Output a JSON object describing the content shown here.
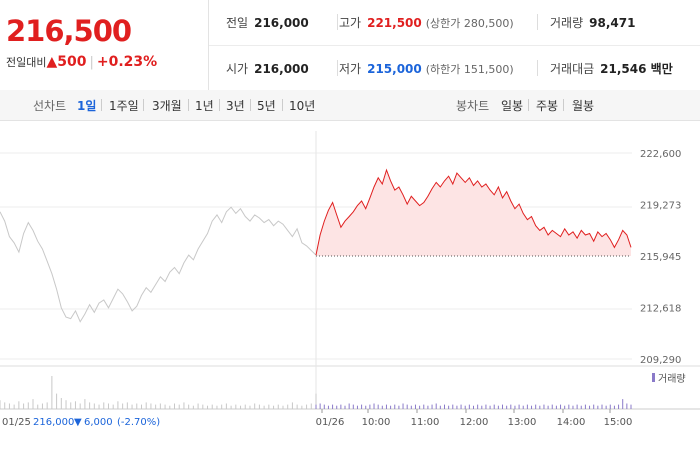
{
  "quote": {
    "price": "216,500",
    "change_label": "전일대비",
    "change_arrow": "▲",
    "change_value": "500",
    "change_pct": "+0.23%"
  },
  "info": {
    "prev_close_label": "전일",
    "prev_close": "216,000",
    "high_label": "고가",
    "high": "221,500",
    "upper_limit": "(상한가 280,500)",
    "volume_label": "거래량",
    "volume": "98,471",
    "open_label": "시가",
    "open": "216,000",
    "low_label": "저가",
    "low": "215,000",
    "lower_limit": "(하한가 151,500)",
    "amount_label": "거래대금",
    "amount": "21,546 백만"
  },
  "tabs": {
    "line_label": "선차트",
    "line_items": [
      "1일",
      "1주일",
      "3개월",
      "1년",
      "3년",
      "5년",
      "10년"
    ],
    "active": "1일",
    "candle_label": "봉차트",
    "candle_items": [
      "일봉",
      "주봉",
      "월봉"
    ]
  },
  "colors": {
    "up": "#e01f1f",
    "down": "#1b64da",
    "prev": "#c8c8c8",
    "fill": "#fde4e4"
  },
  "chart_data": {
    "type": "line",
    "title": "",
    "y_ticks": [
      "222,600",
      "219,273",
      "215,945",
      "212,618",
      "209,290"
    ],
    "y_tick_values": [
      222600,
      219273,
      215945,
      212618,
      209290
    ],
    "ylim": [
      209290,
      222600
    ],
    "x_tick_labels": [
      "01/26",
      "10:00",
      "11:00",
      "12:00",
      "13:00",
      "14:00",
      "15:00"
    ],
    "baseline": 215945,
    "volume_label": "거래량",
    "prev_day_caption": {
      "date": "01/25",
      "close": "216,000",
      "arrow": "▼",
      "change": "6,000",
      "pct": "(-2.70%)"
    },
    "prev_day_series": {
      "name": "",
      "time_range": [
        "09:00",
        "15:30"
      ],
      "values": [
        218800,
        218200,
        217200,
        216800,
        216200,
        217400,
        218100,
        217600,
        216900,
        216400,
        215600,
        214800,
        213800,
        212600,
        212000,
        211900,
        212400,
        211700,
        212200,
        212800,
        212300,
        212900,
        213100,
        212600,
        213200,
        213800,
        213500,
        213000,
        212400,
        212700,
        213400,
        213900,
        213600,
        214100,
        214600,
        214300,
        214900,
        215200,
        214800,
        215500,
        216000,
        215700,
        216400,
        216900,
        217400,
        218200,
        218600,
        218100,
        218800,
        219100,
        218700,
        219000,
        218500,
        218200,
        218600,
        218400,
        218100,
        218300,
        217900,
        218200,
        218000,
        217600,
        217200,
        217700,
        216800,
        216600,
        216300,
        216000
      ]
    },
    "today_series": {
      "name": "",
      "time_range": [
        "09:00",
        "15:30"
      ],
      "values": [
        216000,
        217300,
        218200,
        218900,
        219400,
        218600,
        217800,
        218200,
        218500,
        218800,
        219200,
        219500,
        219000,
        219700,
        220400,
        221000,
        220600,
        221500,
        220800,
        220200,
        220400,
        219900,
        219300,
        219800,
        219500,
        219200,
        219400,
        219800,
        220300,
        220700,
        220400,
        220800,
        221100,
        220600,
        221300,
        221000,
        220700,
        221000,
        220500,
        220800,
        220400,
        220600,
        220200,
        219900,
        220400,
        219700,
        220100,
        219500,
        219000,
        219300,
        218700,
        218300,
        218500,
        217900,
        217600,
        217800,
        217300,
        217600,
        217400,
        217200,
        217700,
        217300,
        217500,
        217100,
        217600,
        217300,
        217400,
        216900,
        217500,
        217200,
        217400,
        217000,
        216500,
        217000,
        217600,
        217300,
        216500
      ]
    },
    "prev_volume": [
      8,
      6,
      5,
      4,
      7,
      5,
      6,
      9,
      4,
      5,
      6,
      30,
      14,
      10,
      8,
      6,
      7,
      5,
      9,
      6,
      5,
      4,
      6,
      5,
      4,
      7,
      5,
      6,
      4,
      5,
      4,
      6,
      5,
      4,
      5,
      4,
      3,
      5,
      4,
      6,
      4,
      3,
      5,
      4,
      3,
      4,
      3,
      4,
      5,
      3,
      4,
      3,
      4,
      3,
      5,
      4,
      3,
      4,
      3,
      4,
      3,
      4,
      6,
      4,
      3,
      4,
      5,
      14
    ],
    "today_volume": [
      4,
      5,
      4,
      3,
      4,
      3,
      4,
      3,
      5,
      4,
      3,
      4,
      3,
      4,
      5,
      4,
      3,
      4,
      3,
      4,
      3,
      5,
      4,
      3,
      4,
      3,
      4,
      3,
      4,
      5,
      3,
      4,
      3,
      4,
      3,
      4,
      3,
      4,
      3,
      4,
      3,
      4,
      3,
      4,
      3,
      4,
      3,
      4,
      3,
      4,
      3,
      4,
      3,
      4,
      3,
      4,
      3,
      4,
      3,
      4,
      3,
      4,
      3,
      4,
      3,
      4,
      3,
      4,
      3,
      4,
      3,
      4,
      3,
      4,
      9,
      5,
      4
    ]
  }
}
